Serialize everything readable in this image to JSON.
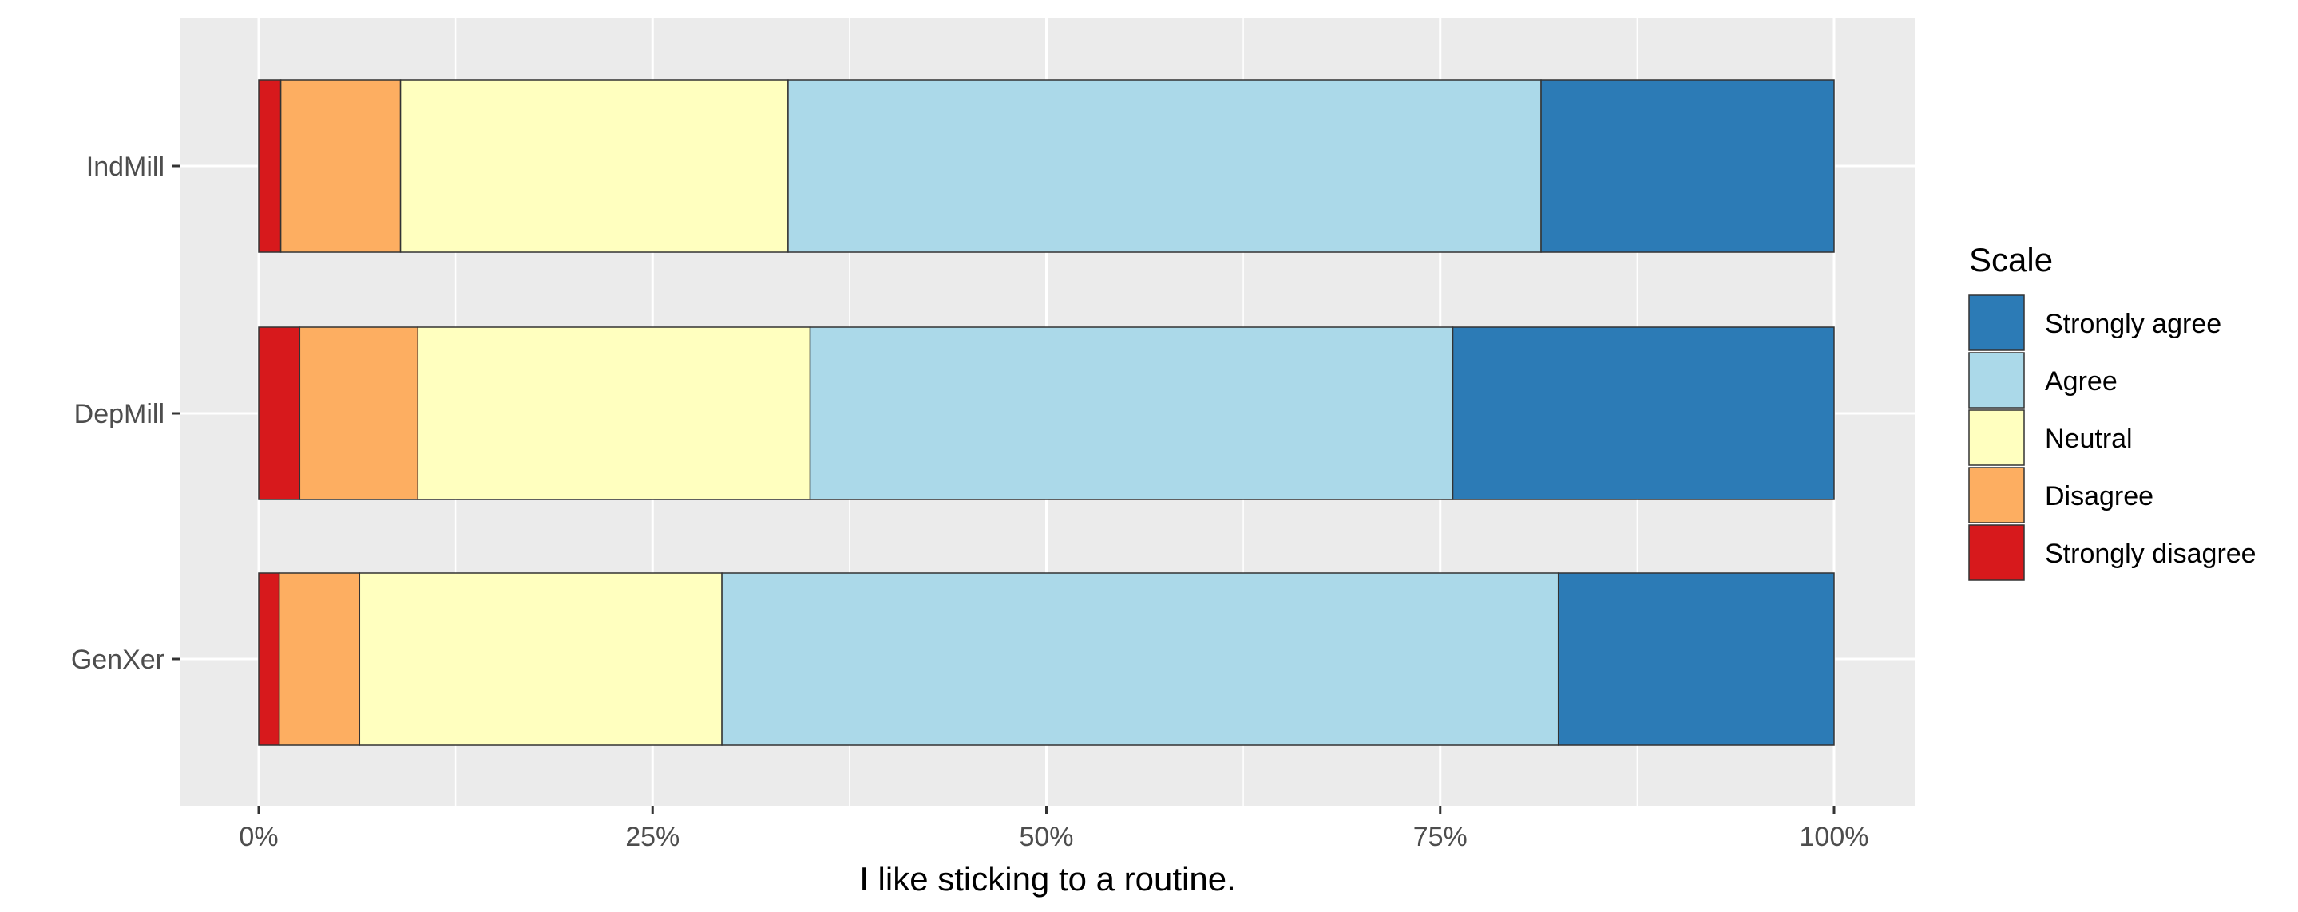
{
  "chart_data": {
    "type": "bar",
    "orientation": "horizontal",
    "stacked": "percent",
    "categories": [
      "IndMill",
      "DepMill",
      "GenXer"
    ],
    "series": [
      {
        "name": "Strongly disagree",
        "color": "#D7191C",
        "values": [
          1.4,
          2.6,
          1.3
        ]
      },
      {
        "name": "Disagree",
        "color": "#FDAE61",
        "values": [
          7.6,
          7.5,
          5.1
        ]
      },
      {
        "name": "Neutral",
        "color": "#FFFFBF",
        "values": [
          24.6,
          24.9,
          23.0
        ]
      },
      {
        "name": "Agree",
        "color": "#ABD9E9",
        "values": [
          47.8,
          40.8,
          53.1
        ]
      },
      {
        "name": "Strongly agree",
        "color": "#2C7BB6",
        "values": [
          18.6,
          24.2,
          17.5
        ]
      }
    ],
    "xticks": [
      "0%",
      "25%",
      "50%",
      "75%",
      "100%"
    ],
    "xlim": [
      0,
      100
    ],
    "xlabel": "I like sticking to a routine.",
    "ylabel": "",
    "title": "",
    "grid": true,
    "legend": {
      "title": "Scale",
      "placement": "right",
      "order": [
        "Strongly agree",
        "Agree",
        "Neutral",
        "Disagree",
        "Strongly disagree"
      ]
    },
    "panel_color": "#EBEBEB",
    "grid_color": "#FFFFFF",
    "bar_outline": "#333333"
  }
}
